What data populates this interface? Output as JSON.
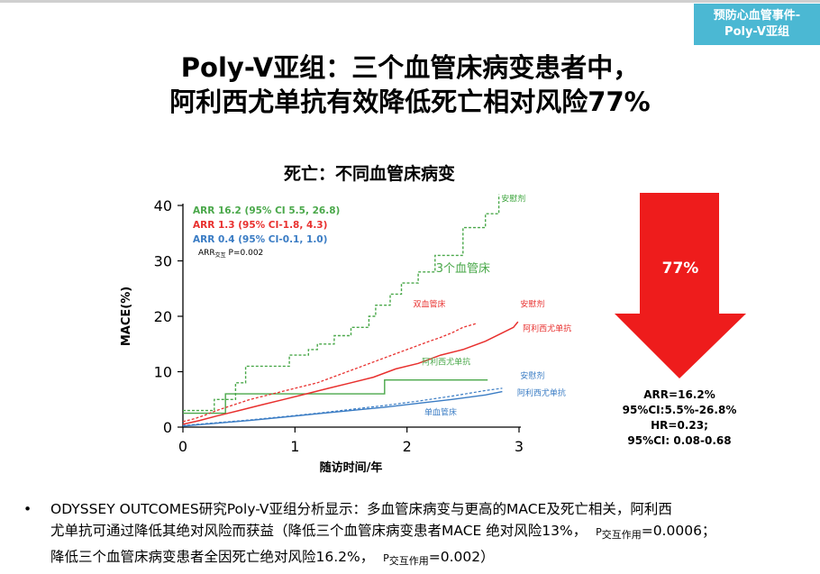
{
  "tag": {
    "line1": "预防心血管事件-",
    "line2": "Poly-V亚组"
  },
  "title": {
    "line1": "Poly-V亚组：三个血管床病变患者中，",
    "line2": "阿利西尤单抗有效降低死亡相对风险77%"
  },
  "chart_data": {
    "type": "line",
    "title": "死亡：不同血管床病变",
    "xlabel": "随访时间/年",
    "ylabel": "MACE(%)",
    "xlim": [
      0,
      3
    ],
    "ylim": [
      0,
      40
    ],
    "xticks": [
      "0",
      "1",
      "2",
      "3"
    ],
    "yticks": [
      "0",
      "10",
      "20",
      "30",
      "40"
    ],
    "legend": [
      {
        "text": "ARR 16.2 (95% CI 5.5, 26.8)",
        "color": "#4aa84a"
      },
      {
        "text": "ARR 1.3 (95% CI-1.8, 4.3)",
        "color": "#e8302e"
      },
      {
        "text": "ARR 0.4 (95% CI-0.1, 1.0)",
        "color": "#3a7cc4"
      }
    ],
    "interaction_note": {
      "main": "ARR",
      "sub": "交互",
      "rest": " P=0.002"
    },
    "annotations": [
      {
        "text": "安慰剂",
        "color": "#3aa43a",
        "x": 2.95,
        "y": 40.7,
        "size": 9
      },
      {
        "text": "3个血管床",
        "color": "#4aa84a",
        "x": 2.5,
        "y": 28.0,
        "size": 13
      },
      {
        "text": "双血管床",
        "color": "#e8302e",
        "x": 2.2,
        "y": 21.7,
        "size": 9
      },
      {
        "text": "安慰剂",
        "color": "#e8302e",
        "x": 3.12,
        "y": 21.7,
        "size": 9
      },
      {
        "text": "阿利西尤单抗",
        "color": "#e8302e",
        "x": 3.25,
        "y": 17.3,
        "size": 9
      },
      {
        "text": "阿利西尤单抗",
        "color": "#4aa84a",
        "x": 2.35,
        "y": 11.3,
        "size": 9
      },
      {
        "text": "安慰剂",
        "color": "#3a7cc4",
        "x": 3.12,
        "y": 8.8,
        "size": 9
      },
      {
        "text": "阿利西尤单抗",
        "color": "#3a7cc4",
        "x": 3.2,
        "y": 5.7,
        "size": 9
      },
      {
        "text": "单血管床",
        "color": "#3a7cc4",
        "x": 2.3,
        "y": 2.2,
        "size": 9
      }
    ],
    "series": [
      {
        "color": "#4aa84a",
        "dashed": true,
        "width": 1.4,
        "points": [
          [
            0,
            3
          ],
          [
            0.28,
            3
          ],
          [
            0.28,
            5
          ],
          [
            0.47,
            5
          ],
          [
            0.47,
            8
          ],
          [
            0.56,
            8
          ],
          [
            0.56,
            11
          ],
          [
            0.95,
            11
          ],
          [
            0.95,
            13
          ],
          [
            1.12,
            13
          ],
          [
            1.12,
            14
          ],
          [
            1.2,
            14
          ],
          [
            1.2,
            15
          ],
          [
            1.35,
            15
          ],
          [
            1.35,
            16.5
          ],
          [
            1.5,
            16.5
          ],
          [
            1.5,
            18
          ],
          [
            1.66,
            18
          ],
          [
            1.66,
            20
          ],
          [
            1.72,
            20
          ],
          [
            1.72,
            22
          ],
          [
            1.85,
            22
          ],
          [
            1.85,
            24
          ],
          [
            1.95,
            24
          ],
          [
            1.95,
            26
          ],
          [
            2.1,
            26
          ],
          [
            2.1,
            28
          ],
          [
            2.25,
            28
          ],
          [
            2.25,
            31
          ],
          [
            2.5,
            31
          ],
          [
            2.5,
            36
          ],
          [
            2.7,
            36
          ],
          [
            2.7,
            38.5
          ],
          [
            2.82,
            38.5
          ],
          [
            2.82,
            42
          ]
        ]
      },
      {
        "color": "#4aa84a",
        "dashed": false,
        "width": 1.4,
        "points": [
          [
            0,
            2.5
          ],
          [
            0.38,
            2.5
          ],
          [
            0.38,
            6
          ],
          [
            1.8,
            6
          ],
          [
            1.8,
            8.5
          ],
          [
            2.72,
            8.5
          ]
        ]
      },
      {
        "color": "#e8302e",
        "dashed": true,
        "width": 1.3,
        "points": [
          [
            0,
            1
          ],
          [
            0.1,
            1.5
          ],
          [
            0.2,
            2.2
          ],
          [
            0.3,
            3
          ],
          [
            0.45,
            4
          ],
          [
            0.6,
            5
          ],
          [
            0.8,
            6
          ],
          [
            1,
            7
          ],
          [
            1.2,
            8
          ],
          [
            1.4,
            9.5
          ],
          [
            1.6,
            11
          ],
          [
            1.8,
            12.5
          ],
          [
            2,
            14
          ],
          [
            2.2,
            15.5
          ],
          [
            2.3,
            16.2
          ],
          [
            2.4,
            17
          ],
          [
            2.5,
            18
          ],
          [
            2.62,
            18.7
          ]
        ]
      },
      {
        "color": "#e8302e",
        "dashed": false,
        "width": 1.5,
        "points": [
          [
            0,
            0.5
          ],
          [
            0.15,
            1.2
          ],
          [
            0.3,
            2
          ],
          [
            0.5,
            3
          ],
          [
            0.7,
            4
          ],
          [
            0.9,
            5
          ],
          [
            1.1,
            6
          ],
          [
            1.3,
            7
          ],
          [
            1.5,
            8
          ],
          [
            1.7,
            9
          ],
          [
            1.9,
            10.5
          ],
          [
            2.1,
            11.5
          ],
          [
            2.3,
            13
          ],
          [
            2.5,
            14
          ],
          [
            2.7,
            15.5
          ],
          [
            2.85,
            17
          ],
          [
            2.95,
            18
          ],
          [
            2.99,
            19
          ]
        ]
      },
      {
        "color": "#3a7cc4",
        "dashed": true,
        "width": 1.2,
        "points": [
          [
            0,
            0.3
          ],
          [
            0.3,
            0.8
          ],
          [
            0.6,
            1.3
          ],
          [
            0.9,
            1.9
          ],
          [
            1.2,
            2.5
          ],
          [
            1.5,
            3.2
          ],
          [
            1.8,
            3.9
          ],
          [
            2.1,
            4.7
          ],
          [
            2.4,
            5.6
          ],
          [
            2.7,
            6.6
          ],
          [
            2.85,
            7
          ]
        ]
      },
      {
        "color": "#3a7cc4",
        "dashed": false,
        "width": 1.4,
        "points": [
          [
            0,
            0.2
          ],
          [
            0.3,
            0.7
          ],
          [
            0.6,
            1.2
          ],
          [
            0.9,
            1.8
          ],
          [
            1.2,
            2.4
          ],
          [
            1.5,
            3.0
          ],
          [
            1.8,
            3.6
          ],
          [
            2.1,
            4.3
          ],
          [
            2.4,
            5.0
          ],
          [
            2.7,
            5.8
          ],
          [
            2.85,
            6.4
          ]
        ]
      }
    ]
  },
  "arrow": {
    "percent": "77%",
    "color": "#ee1c1c"
  },
  "stats": {
    "line1": "ARR=16.2%",
    "line2": "95%CI:5.5%-26.8%",
    "line3": "HR=0.23;",
    "line4": "95%CI: 0.08-0.68"
  },
  "bullet": {
    "dot": "•",
    "text1": "ODYSSEY OUTCOMES研究Poly-V亚组分析显示：多血管床病变与更高的MACE及死亡相关，阿利西",
    "text2": "尤单抗可通过降低其绝对风险而获益（降低三个血管床病变患者MACE 绝对风险13%，",
    "p": "P",
    "sub": "交互作用",
    "val1": "=0.0006；",
    "text3": "降低三个血管床病变患者全因死亡绝对风险16.2%，",
    "val2": "=0.002）"
  }
}
